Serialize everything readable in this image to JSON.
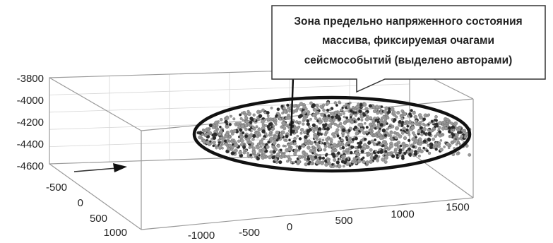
{
  "chart_data": {
    "type": "scatter",
    "title": "",
    "xlabel": "",
    "ylabel": "",
    "zlabel": "",
    "z_ticks": [
      "-3800",
      "-4000",
      "-4200",
      "-4400",
      "-4600"
    ],
    "y_ticks": [
      "-500",
      "0",
      "500",
      "1000"
    ],
    "x_ticks": [
      "-1000",
      "-500",
      "0",
      "500",
      "1000",
      "1500"
    ],
    "xlim": [
      -1200,
      1800
    ],
    "ylim": [
      -700,
      1200
    ],
    "zlim": [
      -4600,
      -3800
    ],
    "cloud": {
      "x_range": [
        -200,
        1800
      ],
      "z_range": [
        -4450,
        -4150
      ],
      "color_light": "#9a9a9a",
      "color_dark": "#2a2a2a"
    },
    "grid": true,
    "annotation": {
      "lines": [
        "Зона предельно напряженного состояния",
        "массива, фиксируемая очагами",
        "сейсмособытий (выделено авторами)"
      ]
    }
  }
}
